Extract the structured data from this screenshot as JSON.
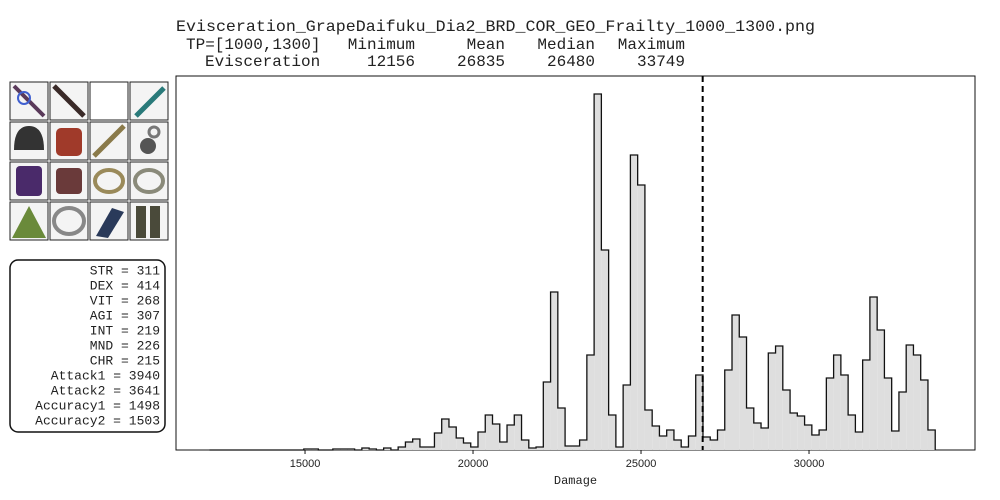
{
  "chart_data": {
    "type": "histogram",
    "title": "Evisceration_GrapeDaifuku_Dia2_BRD_COR_GEO_Frailty_1000_1300.png",
    "stats_table": {
      "header": [
        "TP=[1000,1300]",
        "Minimum",
        "Mean",
        "Median",
        "Maximum"
      ],
      "row_label": "Evisceration",
      "values": [
        12156,
        26835,
        26480,
        33749
      ]
    },
    "stats": [
      "STR =  311",
      "DEX =  414",
      "VIT =  268",
      "AGI =  307",
      "INT =  219",
      "MND =  226",
      "CHR =  215",
      "Attack1 = 3940",
      "Attack2 = 3641",
      "Accuracy1 = 1498",
      "Accuracy2 = 1503"
    ],
    "x_label": "Damage",
    "bins": [
      12156,
      12372,
      12588,
      12804,
      13020,
      13236,
      13452,
      13668,
      13884,
      14100,
      14316,
      14532,
      14748,
      14964,
      15180,
      15396,
      15612,
      15828,
      16044,
      16260,
      16476,
      16692,
      16908,
      17124,
      17340,
      17556,
      17772,
      17988,
      18204,
      18420,
      18636,
      18852,
      19068,
      19284,
      19500,
      19716,
      19932,
      20148,
      20364,
      20580,
      20796,
      21012,
      21228,
      21444,
      21660,
      21876,
      22092,
      22308,
      22524,
      22740,
      22956,
      23172,
      23388,
      23604,
      23820,
      24036,
      24252,
      24468,
      24684,
      24900,
      25116,
      25332,
      25548,
      25764,
      25980,
      26196,
      26412,
      26628,
      26844,
      27060,
      27276,
      27492,
      27708,
      27924,
      28140,
      28356,
      28572,
      28788,
      29004,
      29220,
      29436,
      29652,
      29868,
      30084,
      30300,
      30516,
      30732,
      30948,
      31164,
      31380,
      31596,
      31812,
      32028,
      32244,
      32460,
      32676,
      32892,
      33108,
      33324,
      33540,
      33756
    ],
    "values": [
      0,
      0,
      0,
      0,
      0,
      0,
      0,
      0,
      0,
      0,
      0,
      0,
      0,
      1,
      1,
      0,
      0,
      1,
      1,
      1,
      0,
      2,
      1,
      0,
      2,
      0,
      3,
      8,
      11,
      3,
      3,
      17,
      31,
      23,
      12,
      7,
      3,
      18,
      35,
      26,
      8,
      25,
      35,
      10,
      2,
      3,
      68,
      158,
      42,
      4,
      4,
      10,
      95,
      356,
      200,
      35,
      3,
      65,
      295,
      265,
      40,
      24,
      14,
      20,
      10,
      3,
      14,
      75,
      13,
      10,
      20,
      80,
      135,
      113,
      42,
      27,
      22,
      97,
      104,
      60,
      37,
      34,
      25,
      15,
      20,
      72,
      95,
      75,
      35,
      18,
      90,
      153,
      120,
      72,
      19,
      58,
      105,
      95,
      70,
      20
    ],
    "color": "#dedede",
    "xlim": [
      11160,
      34940
    ],
    "ylim": [
      0,
      374
    ],
    "xticks": [
      15000,
      20000,
      25000,
      30000
    ]
  }
}
